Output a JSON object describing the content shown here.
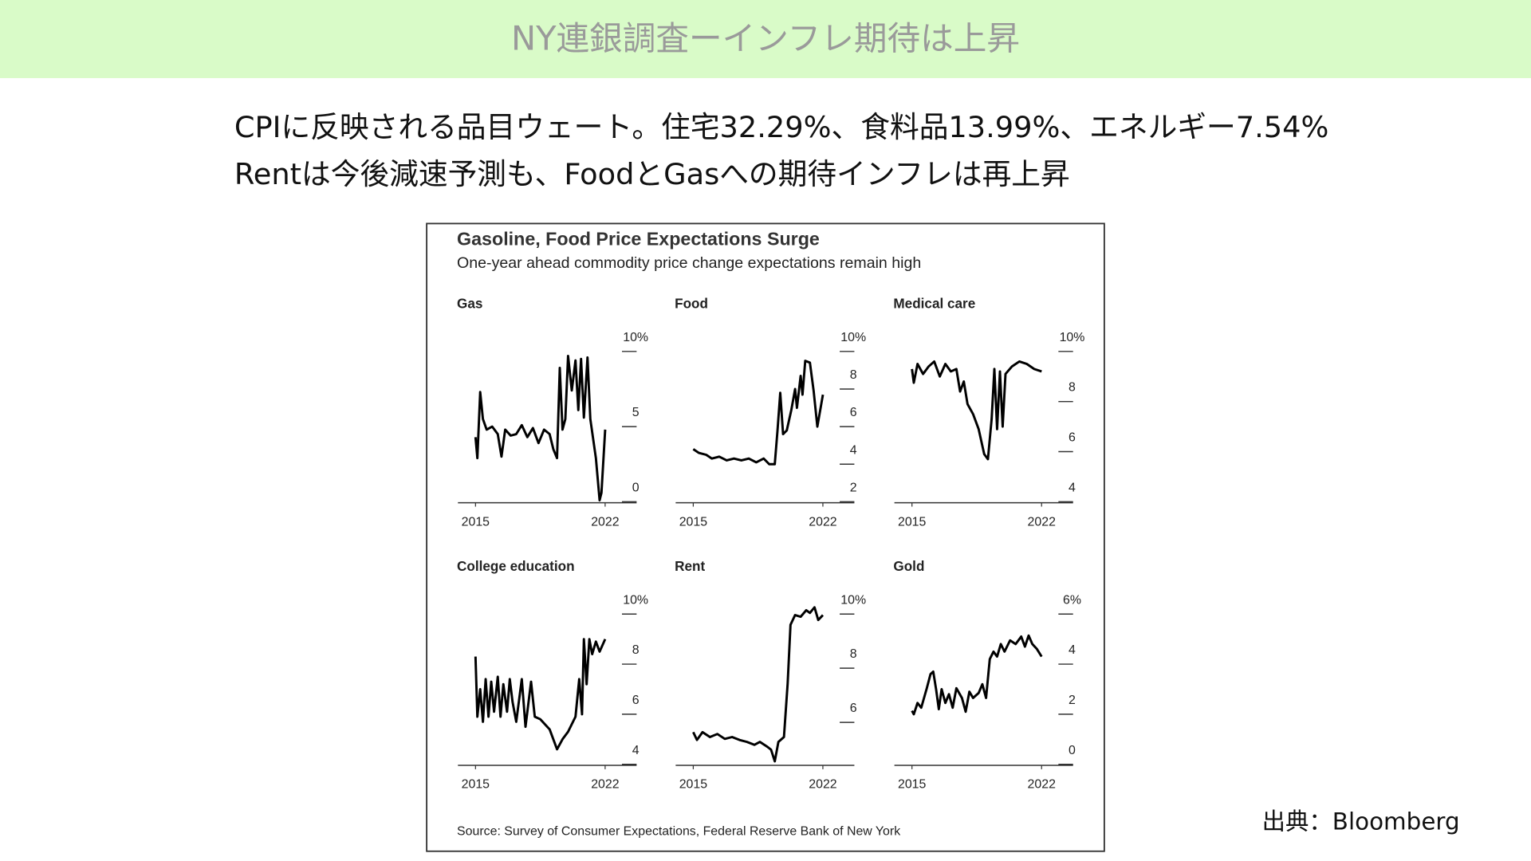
{
  "header": {
    "title": "NY連銀調査ーインフレ期待は上昇"
  },
  "body": {
    "lines": [
      "CPIに反映される品目ウェート。住宅32.29%、食料品13.99%、エネルギー7.54%",
      "Rentは今後減速予測も、FoodとGasへの期待インフレは再上昇"
    ]
  },
  "figure": {
    "title": "Gasoline, Food Price Expectations Surge",
    "subtitle": "One-year ahead commodity price change expectations remain high",
    "source": "Source: Survey of Consumer Expectations, Federal Reserve Bank of New York"
  },
  "credit": "出典：Bloomberg",
  "chart_data": [
    {
      "type": "line",
      "title": "Gas",
      "color": "#000000",
      "x": [
        2015.0,
        2015.1,
        2015.25,
        2015.4,
        2015.6,
        2015.9,
        2016.2,
        2016.4,
        2016.6,
        2016.9,
        2017.2,
        2017.5,
        2017.8,
        2018.1,
        2018.4,
        2018.7,
        2019.0,
        2019.2,
        2019.4,
        2019.55,
        2019.7,
        2019.85,
        2020.0,
        2020.2,
        2020.4,
        2020.55,
        2020.7,
        2020.85,
        2021.05,
        2021.2,
        2021.5,
        2021.7,
        2021.8,
        2022.0
      ],
      "values": [
        4.3,
        2.9,
        7.3,
        5.5,
        4.8,
        5.0,
        4.5,
        3.0,
        4.8,
        4.4,
        4.5,
        5.1,
        4.3,
        4.9,
        3.9,
        4.8,
        4.5,
        3.5,
        2.9,
        8.9,
        4.8,
        5.5,
        9.7,
        7.4,
        9.4,
        6.1,
        9.5,
        5.6,
        9.6,
        5.5,
        2.9,
        0.1,
        0.6,
        4.8
      ],
      "xlim": [
        2014.05,
        2023.7
      ],
      "xticks": [
        2015,
        2022
      ],
      "ylim": [
        0,
        10
      ],
      "yticks": [
        0,
        5,
        {
          "value": 10,
          "label": "10%"
        }
      ]
    },
    {
      "type": "line",
      "title": "Food",
      "color": "#000000",
      "x": [
        2015.0,
        2015.3,
        2015.7,
        2016.0,
        2016.4,
        2016.8,
        2017.2,
        2017.6,
        2018.0,
        2018.4,
        2018.8,
        2019.1,
        2019.4,
        2019.55,
        2019.7,
        2019.85,
        2020.05,
        2020.3,
        2020.5,
        2020.6,
        2020.8,
        2020.9,
        2021.05,
        2021.3,
        2021.5,
        2021.7,
        2022.0
      ],
      "values": [
        4.8,
        4.6,
        4.5,
        4.3,
        4.4,
        4.2,
        4.3,
        4.2,
        4.3,
        4.1,
        4.3,
        4.0,
        4.0,
        5.8,
        7.8,
        5.6,
        5.8,
        6.9,
        8.0,
        7.0,
        8.7,
        7.7,
        9.5,
        9.4,
        7.9,
        6.0,
        7.7
      ],
      "xlim": [
        2014.05,
        2023.7
      ],
      "xticks": [
        2015,
        2022
      ],
      "ylim": [
        2,
        10
      ],
      "yticks": [
        2,
        4,
        6,
        8,
        {
          "value": 10,
          "label": "10%"
        }
      ]
    },
    {
      "type": "line",
      "title": "Medical care",
      "color": "#000000",
      "x": [
        2015.0,
        2015.1,
        2015.3,
        2015.6,
        2015.9,
        2016.2,
        2016.5,
        2016.8,
        2017.1,
        2017.4,
        2017.6,
        2017.8,
        2018.0,
        2018.3,
        2018.6,
        2018.9,
        2019.1,
        2019.3,
        2019.45,
        2019.6,
        2019.75,
        2019.9,
        2020.05,
        2020.4,
        2020.8,
        2021.2,
        2021.6,
        2022.0
      ],
      "values": [
        9.3,
        8.75,
        9.5,
        9.1,
        9.4,
        9.6,
        9.0,
        9.5,
        9.2,
        9.3,
        8.4,
        8.8,
        7.9,
        7.5,
        6.9,
        5.9,
        5.7,
        7.3,
        9.3,
        6.9,
        9.2,
        7.0,
        9.1,
        9.4,
        9.6,
        9.5,
        9.3,
        9.2
      ],
      "xlim": [
        2014.05,
        2023.7
      ],
      "xticks": [
        2015,
        2022
      ],
      "ylim": [
        4,
        10
      ],
      "yticks": [
        4,
        6,
        8,
        {
          "value": 10,
          "label": "10%"
        }
      ]
    },
    {
      "type": "line",
      "title": "College education",
      "color": "#000000",
      "x": [
        2015.0,
        2015.1,
        2015.25,
        2015.4,
        2015.55,
        2015.7,
        2015.85,
        2016.0,
        2016.2,
        2016.35,
        2016.5,
        2016.7,
        2016.85,
        2017.0,
        2017.2,
        2017.5,
        2017.7,
        2018.0,
        2018.2,
        2018.5,
        2019.0,
        2019.4,
        2019.7,
        2020.0,
        2020.4,
        2020.6,
        2020.75,
        2020.85,
        2021.0,
        2021.15,
        2021.3,
        2021.5,
        2021.7,
        2022.0
      ],
      "values": [
        8.3,
        5.9,
        7.0,
        5.7,
        7.4,
        5.9,
        7.3,
        6.1,
        7.5,
        5.9,
        7.2,
        6.1,
        7.4,
        6.5,
        5.7,
        7.4,
        5.5,
        7.3,
        5.9,
        5.8,
        5.4,
        4.6,
        5.0,
        5.3,
        5.9,
        7.4,
        6.0,
        9.0,
        7.2,
        9.0,
        8.4,
        8.9,
        8.5,
        9.0
      ],
      "xlim": [
        2014.05,
        2023.7
      ],
      "xticks": [
        2015,
        2022
      ],
      "ylim": [
        4,
        10
      ],
      "yticks": [
        4,
        6,
        8,
        {
          "value": 10,
          "label": "10%"
        }
      ]
    },
    {
      "type": "line",
      "title": "Rent",
      "color": "#000000",
      "x": [
        2015.0,
        2015.2,
        2015.5,
        2015.9,
        2016.3,
        2016.7,
        2017.1,
        2017.5,
        2017.9,
        2018.3,
        2018.6,
        2019.0,
        2019.2,
        2019.4,
        2019.6,
        2019.9,
        2020.1,
        2020.25,
        2020.5,
        2020.8,
        2021.1,
        2021.3,
        2021.55,
        2021.75,
        2022.0
      ],
      "values": [
        5.64,
        5.35,
        5.64,
        5.46,
        5.57,
        5.39,
        5.46,
        5.35,
        5.28,
        5.17,
        5.28,
        5.1,
        4.99,
        4.56,
        5.28,
        5.46,
        7.44,
        9.6,
        9.96,
        9.9,
        10.14,
        10.04,
        10.25,
        9.78,
        9.96
      ],
      "xlim": [
        2014.05,
        2023.7
      ],
      "xticks": [
        2015,
        2022
      ],
      "ylim": [
        4.45,
        10
      ],
      "yticks": [
        6,
        8,
        {
          "value": 10,
          "label": "10%"
        }
      ]
    },
    {
      "type": "line",
      "title": "Gold",
      "color": "#000000",
      "x": [
        2015.0,
        2015.1,
        2015.3,
        2015.5,
        2015.8,
        2016.0,
        2016.15,
        2016.3,
        2016.45,
        2016.6,
        2016.8,
        2017.0,
        2017.2,
        2017.4,
        2017.7,
        2017.9,
        2018.1,
        2018.3,
        2018.6,
        2018.8,
        2019.0,
        2019.2,
        2019.4,
        2019.6,
        2019.8,
        2020.0,
        2020.3,
        2020.6,
        2020.9,
        2021.1,
        2021.3,
        2021.5,
        2021.75,
        2022.0
      ],
      "values": [
        2.14,
        2.0,
        2.45,
        2.26,
        3.04,
        3.6,
        3.7,
        3.0,
        2.2,
        3.0,
        2.45,
        2.8,
        2.26,
        3.04,
        2.65,
        2.1,
        2.9,
        2.65,
        2.85,
        3.2,
        2.65,
        4.2,
        4.5,
        4.3,
        4.8,
        4.5,
        4.95,
        4.8,
        5.1,
        4.7,
        5.14,
        4.8,
        4.6,
        4.3
      ],
      "xlim": [
        2014.05,
        2023.7
      ],
      "xticks": [
        2015,
        2022
      ],
      "ylim": [
        0,
        6
      ],
      "yticks": [
        0,
        2,
        4,
        {
          "value": 6,
          "label": "6%"
        }
      ]
    }
  ]
}
